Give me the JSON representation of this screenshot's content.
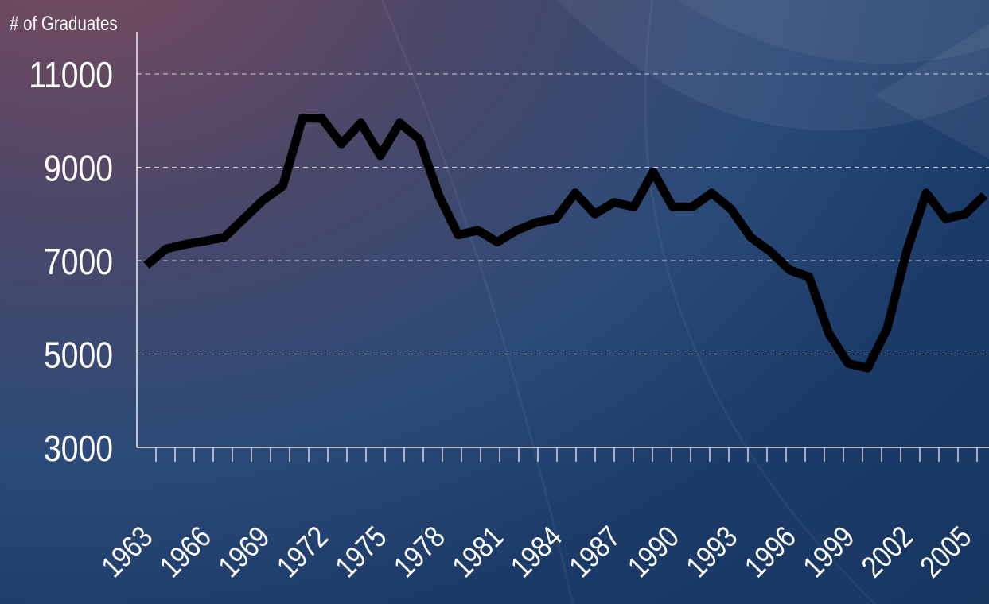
{
  "chart_data": {
    "type": "line",
    "ylabel": "# of Graduates",
    "xlabel": "",
    "title": "",
    "ylim": [
      3000,
      11000
    ],
    "y_ticks": [
      3000,
      5000,
      7000,
      9000,
      11000
    ],
    "y_tick_labels": [
      "3000",
      "5000",
      "7000",
      "9000",
      "11000"
    ],
    "x_tick_labels": [
      "1963",
      "1966",
      "1969",
      "1972",
      "1975",
      "1978",
      "1981",
      "1984",
      "1987",
      "1990",
      "1993",
      "1996",
      "1999",
      "2002",
      "2005"
    ],
    "grid": "horizontal dashed",
    "legend": "none",
    "line_color": "#000000",
    "series": [
      {
        "x": [
          1963,
          1964,
          1965,
          1966,
          1967,
          1968,
          1969,
          1970,
          1971,
          1972,
          1973,
          1974,
          1975,
          1976,
          1977,
          1978,
          1979,
          1980,
          1981,
          1982,
          1983,
          1984,
          1985,
          1986,
          1987,
          1988,
          1989,
          1990,
          1991,
          1992,
          1993,
          1994,
          1995,
          1996,
          1997,
          1998,
          1999,
          2000,
          2001,
          2002,
          2003,
          2004,
          2005,
          2006
        ],
        "values": [
          6900,
          7250,
          7350,
          7420,
          7500,
          7900,
          8300,
          8600,
          10050,
          10050,
          9500,
          9950,
          9250,
          9950,
          9600,
          8400,
          7550,
          7650,
          7400,
          7650,
          7820,
          7900,
          8450,
          8000,
          8250,
          8150,
          8900,
          8150,
          8150,
          8450,
          8100,
          7500,
          7200,
          6800,
          6650,
          5450,
          4800,
          4700,
          5550,
          7200,
          8450,
          7900,
          8000,
          8400
        ]
      }
    ]
  }
}
